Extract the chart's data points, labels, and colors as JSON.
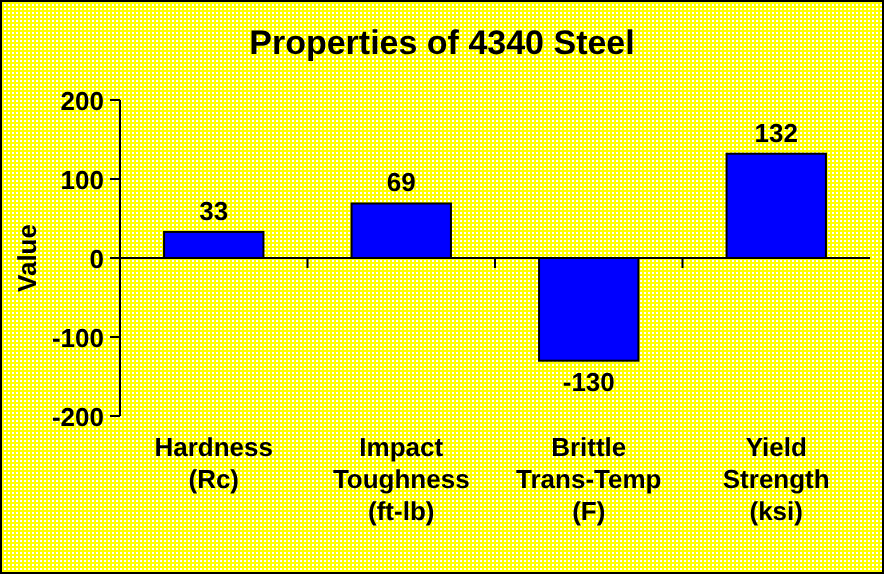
{
  "chart_data": {
    "type": "bar",
    "title": "Properties of 4340 Steel",
    "ylabel": "Value",
    "categories": [
      "Hardness\n(Rc)",
      "Impact\nToughness\n(ft-lb)",
      "Brittle\nTrans-Temp\n(F)",
      "Yield\nStrength\n(ksi)"
    ],
    "values": [
      33,
      69,
      -130,
      132
    ],
    "color": "#0000ff",
    "ylim": [
      -200,
      200
    ],
    "yticks": [
      -200,
      -100,
      0,
      100,
      200
    ],
    "data_labels": true
  }
}
